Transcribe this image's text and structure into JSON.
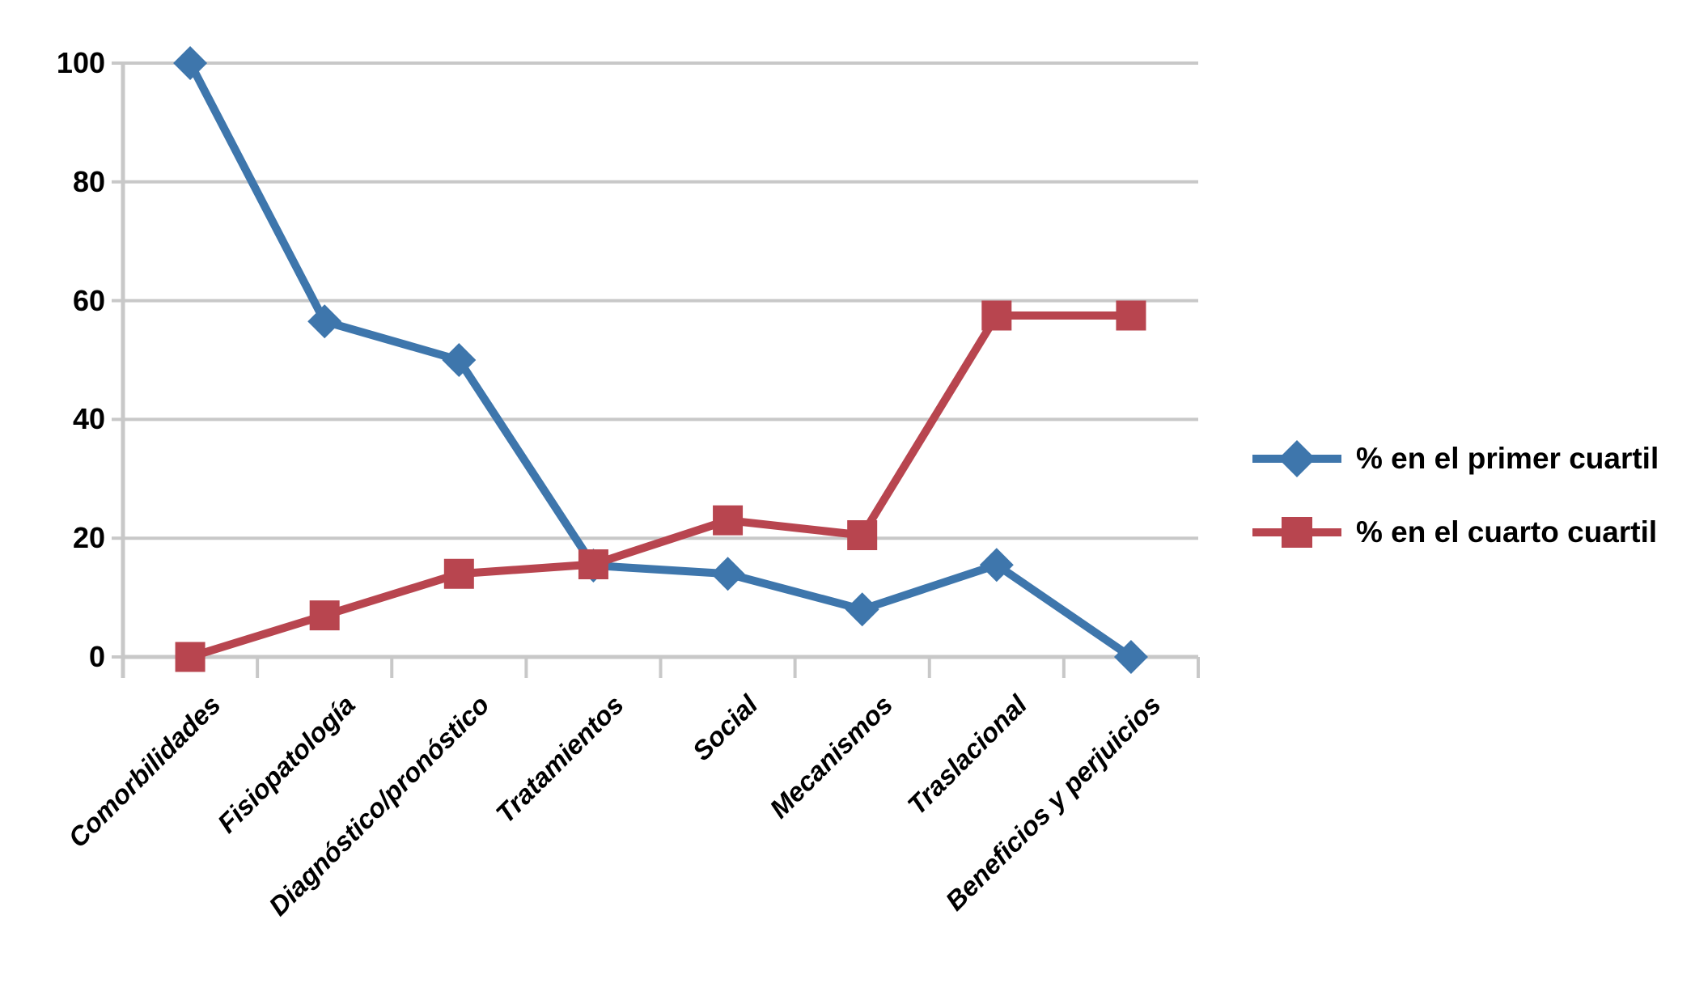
{
  "chart_data": {
    "type": "line",
    "title": "",
    "xlabel": "",
    "ylabel": "",
    "categories": [
      "Comorbilidades",
      "Fisiopatología",
      "Diagnóstico/pronóstico",
      "Tratamientos",
      "Social",
      "Mecanismos",
      "Traslacional",
      "Beneficios y perjuicios"
    ],
    "series": [
      {
        "name": "% en el primer cuartil",
        "marker": "diamond",
        "color": "#3E76AC",
        "values": [
          100,
          56.5,
          50,
          15.4,
          14,
          8,
          15.5,
          0
        ]
      },
      {
        "name": "% en el cuarto cuartil",
        "marker": "square",
        "color": "#B8454F",
        "values": [
          0,
          7,
          14,
          15.6,
          23,
          20.5,
          57.5,
          57.5
        ]
      }
    ],
    "ylim": [
      0,
      100
    ],
    "yticks": [
      0,
      20,
      40,
      60,
      80,
      100
    ],
    "grid": true,
    "grid_color": "#C8C8C8",
    "axis_color": "#C8C8C8",
    "text_color": "#000000",
    "legend_position": "right"
  }
}
